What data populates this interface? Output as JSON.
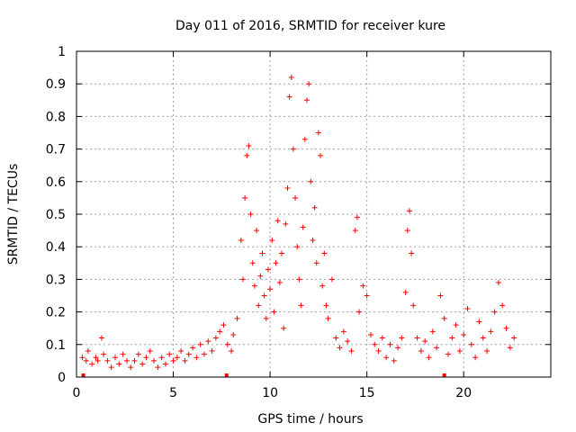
{
  "chart_data": {
    "type": "scatter",
    "title": "Day 011 of 2016, SRMTID for receiver kure",
    "xlabel": "GPS time / hours",
    "ylabel": "SRMTID / TECUs",
    "xlim": [
      0,
      24.5
    ],
    "ylim": [
      0,
      1
    ],
    "xticks": [
      0,
      5,
      10,
      15,
      20
    ],
    "xtick_labels": [
      "0",
      "5",
      "10",
      "15",
      "20"
    ],
    "yticks": [
      0,
      0.1,
      0.2,
      0.3,
      0.4,
      0.5,
      0.6,
      0.7,
      0.8,
      0.9,
      1
    ],
    "ytick_labels": [
      "0",
      "0.1",
      "0.2",
      "0.3",
      "0.4",
      "0.5",
      "0.6",
      "0.7",
      "0.8",
      "0.9",
      "1"
    ],
    "grid": true,
    "marker": "+",
    "color": "#ff0000",
    "series": [
      {
        "name": "SRMTID",
        "points": [
          [
            0.3,
            0.06
          ],
          [
            0.5,
            0.05
          ],
          [
            0.6,
            0.08
          ],
          [
            0.8,
            0.04
          ],
          [
            1.0,
            0.06
          ],
          [
            1.1,
            0.05
          ],
          [
            1.3,
            0.12
          ],
          [
            1.4,
            0.07
          ],
          [
            1.6,
            0.05
          ],
          [
            1.8,
            0.03
          ],
          [
            2.0,
            0.06
          ],
          [
            2.2,
            0.04
          ],
          [
            2.4,
            0.07
          ],
          [
            2.6,
            0.05
          ],
          [
            2.8,
            0.03
          ],
          [
            3.0,
            0.05
          ],
          [
            3.2,
            0.07
          ],
          [
            3.4,
            0.04
          ],
          [
            3.6,
            0.06
          ],
          [
            3.8,
            0.08
          ],
          [
            4.0,
            0.05
          ],
          [
            4.2,
            0.03
          ],
          [
            4.4,
            0.06
          ],
          [
            4.6,
            0.04
          ],
          [
            4.8,
            0.07
          ],
          [
            5.0,
            0.05
          ],
          [
            5.2,
            0.06
          ],
          [
            5.4,
            0.08
          ],
          [
            5.6,
            0.05
          ],
          [
            5.8,
            0.07
          ],
          [
            6.0,
            0.09
          ],
          [
            6.2,
            0.06
          ],
          [
            6.4,
            0.1
          ],
          [
            6.6,
            0.07
          ],
          [
            6.8,
            0.11
          ],
          [
            7.0,
            0.08
          ],
          [
            7.2,
            0.12
          ],
          [
            7.4,
            0.14
          ],
          [
            7.6,
            0.16
          ],
          [
            7.8,
            0.1
          ],
          [
            8.0,
            0.08
          ],
          [
            8.1,
            0.13
          ],
          [
            8.3,
            0.18
          ],
          [
            8.5,
            0.42
          ],
          [
            8.6,
            0.3
          ],
          [
            8.7,
            0.55
          ],
          [
            8.8,
            0.68
          ],
          [
            8.9,
            0.71
          ],
          [
            9.0,
            0.5
          ],
          [
            9.1,
            0.35
          ],
          [
            9.2,
            0.28
          ],
          [
            9.3,
            0.45
          ],
          [
            9.4,
            0.22
          ],
          [
            9.5,
            0.31
          ],
          [
            9.6,
            0.38
          ],
          [
            9.7,
            0.25
          ],
          [
            9.8,
            0.18
          ],
          [
            9.9,
            0.33
          ],
          [
            10.0,
            0.27
          ],
          [
            10.1,
            0.42
          ],
          [
            10.2,
            0.2
          ],
          [
            10.3,
            0.35
          ],
          [
            10.4,
            0.48
          ],
          [
            10.5,
            0.29
          ],
          [
            10.6,
            0.38
          ],
          [
            10.7,
            0.15
          ],
          [
            10.8,
            0.47
          ],
          [
            10.9,
            0.58
          ],
          [
            11.0,
            0.86
          ],
          [
            11.1,
            0.92
          ],
          [
            11.2,
            0.7
          ],
          [
            11.3,
            0.55
          ],
          [
            11.4,
            0.4
          ],
          [
            11.5,
            0.3
          ],
          [
            11.6,
            0.22
          ],
          [
            11.7,
            0.46
          ],
          [
            11.8,
            0.73
          ],
          [
            11.9,
            0.85
          ],
          [
            12.0,
            0.9
          ],
          [
            12.1,
            0.6
          ],
          [
            12.2,
            0.42
          ],
          [
            12.3,
            0.52
          ],
          [
            12.4,
            0.35
          ],
          [
            12.5,
            0.75
          ],
          [
            12.6,
            0.68
          ],
          [
            12.7,
            0.28
          ],
          [
            12.8,
            0.38
          ],
          [
            12.9,
            0.22
          ],
          [
            13.0,
            0.18
          ],
          [
            13.2,
            0.3
          ],
          [
            13.4,
            0.12
          ],
          [
            13.6,
            0.09
          ],
          [
            13.8,
            0.14
          ],
          [
            14.0,
            0.11
          ],
          [
            14.2,
            0.08
          ],
          [
            14.4,
            0.45
          ],
          [
            14.5,
            0.49
          ],
          [
            14.6,
            0.2
          ],
          [
            14.8,
            0.28
          ],
          [
            15.0,
            0.25
          ],
          [
            15.2,
            0.13
          ],
          [
            15.4,
            0.1
          ],
          [
            15.6,
            0.08
          ],
          [
            15.8,
            0.12
          ],
          [
            16.0,
            0.06
          ],
          [
            16.2,
            0.1
          ],
          [
            16.4,
            0.05
          ],
          [
            16.6,
            0.09
          ],
          [
            16.8,
            0.12
          ],
          [
            17.0,
            0.26
          ],
          [
            17.1,
            0.45
          ],
          [
            17.2,
            0.51
          ],
          [
            17.3,
            0.38
          ],
          [
            17.4,
            0.22
          ],
          [
            17.6,
            0.12
          ],
          [
            17.8,
            0.08
          ],
          [
            18.0,
            0.11
          ],
          [
            18.2,
            0.06
          ],
          [
            18.4,
            0.14
          ],
          [
            18.6,
            0.09
          ],
          [
            18.8,
            0.25
          ],
          [
            19.0,
            0.18
          ],
          [
            19.2,
            0.07
          ],
          [
            19.4,
            0.12
          ],
          [
            19.6,
            0.16
          ],
          [
            19.8,
            0.08
          ],
          [
            20.0,
            0.13
          ],
          [
            20.2,
            0.21
          ],
          [
            20.4,
            0.1
          ],
          [
            20.6,
            0.06
          ],
          [
            20.8,
            0.17
          ],
          [
            21.0,
            0.12
          ],
          [
            21.2,
            0.08
          ],
          [
            21.4,
            0.14
          ],
          [
            21.6,
            0.2
          ],
          [
            21.8,
            0.29
          ],
          [
            22.0,
            0.22
          ],
          [
            22.2,
            0.15
          ],
          [
            22.4,
            0.09
          ],
          [
            22.6,
            0.12
          ]
        ]
      }
    ],
    "bottom_markers": [
      0.35,
      7.75,
      19.0
    ]
  }
}
